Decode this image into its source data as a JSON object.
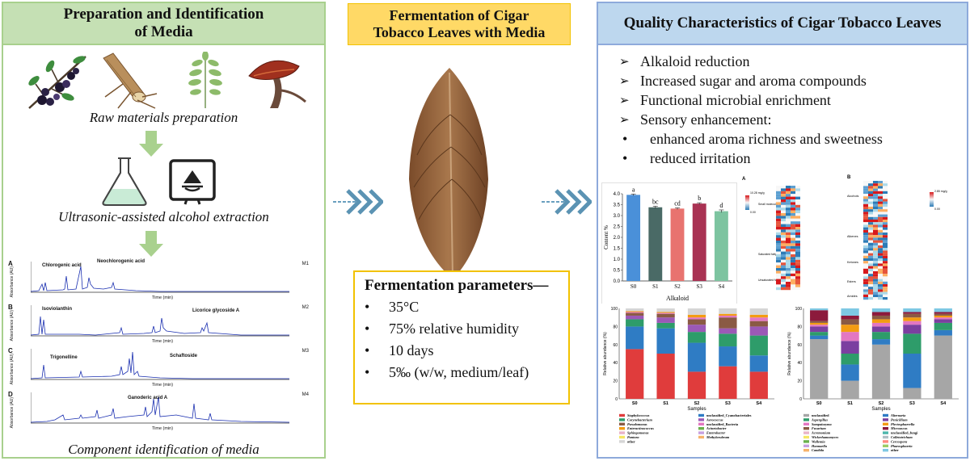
{
  "left_panel": {
    "title": "Preparation and Identification\nof Media",
    "captions": {
      "raw": "Raw materials preparation",
      "extraction": "Ultrasonic-assisted alcohol extraction",
      "identification": "Component identification of media"
    },
    "chromatograms": [
      {
        "panel": "A",
        "medium": "M1",
        "compounds": [
          "Chlorogenic acid",
          "Neochlorogenic acid"
        ]
      },
      {
        "panel": "B",
        "medium": "M2",
        "compounds": [
          "Isoviolanthin",
          "Licorice glycoside A"
        ]
      },
      {
        "panel": "C",
        "medium": "M3",
        "compounds": [
          "Trigonelline",
          "Schaftoside"
        ]
      },
      {
        "panel": "D",
        "medium": "M4",
        "compounds": [
          "Ganoderic acid A"
        ]
      }
    ],
    "chrom_axis": {
      "xlabel": "Time (min)",
      "ylabel": "Absorbance (AU)"
    }
  },
  "middle": {
    "title": "Fermentation of Cigar\nTobacco Leaves with Media",
    "params_title": "Fermentation parameters—",
    "params": [
      "35°C",
      "75% relative humidity",
      "10 days",
      "5‰ (w/w, medium/leaf)"
    ]
  },
  "right_panel": {
    "title": "Quality Characteristics of Cigar Tobacco Leaves",
    "items": [
      "Alkaloid reduction",
      "Increased sugar and aroma compounds",
      "Functional microbial enrichment",
      "Sensory enhancement:"
    ],
    "sub_items": [
      "enhanced aroma richness and sweetness",
      "reduced irritation"
    ],
    "bacteria_legend": [
      "Staphylococcus",
      "unclassified_Cyanobacteriales",
      "Corynebacterium",
      "Aerococcus",
      "Pseudomonas",
      "unclassified_Bacteria",
      "Enteractinococcus",
      "Acinetobacter",
      "Sphingomonas",
      "Enterobacter",
      "Pantoea",
      "Methylorubrum",
      "other"
    ],
    "fungi_legend": [
      "unclassified",
      "Alternaria",
      "Aspergillus",
      "Penicillium",
      "Sampaiozyma",
      "Plectosphaerella",
      "Fusarium",
      "Microascus",
      "Acremonium",
      "unclassified_fungi",
      "Wickerhamomyces",
      "Colletotrichum",
      "Wallemia",
      "Cercospora",
      "Hannaella",
      "Phaeosphaeria",
      "Candida",
      "other"
    ],
    "heatmap_left": {
      "panel": "A",
      "scale_label": "10.28 mg/g",
      "scale_min": "0.00",
      "groups": [
        "Small molecular acids",
        "Saturated fatty acid",
        "Unsaturated fatty acid"
      ]
    },
    "heatmap_right": {
      "panel": "B",
      "scale_label": "2.85 mg/g",
      "scale_min": "0.00",
      "groups": [
        "Alcohols",
        "Alkenes",
        "Ketones",
        "Esters",
        "Amides"
      ]
    }
  },
  "chart_data": [
    {
      "type": "bar",
      "title": "",
      "xlabel": "Alkaloid",
      "ylabel": "Content %",
      "categories": [
        "S0",
        "S1",
        "S2",
        "S3",
        "S4"
      ],
      "values": [
        3.95,
        3.38,
        3.32,
        3.55,
        3.2
      ],
      "errors": [
        0.04,
        0.05,
        0.04,
        0.04,
        0.06
      ],
      "labels": [
        "a",
        "bc",
        "cd",
        "b",
        "d"
      ],
      "colors": [
        "#4a90d9",
        "#4a6a66",
        "#e8736f",
        "#a93253",
        "#7dc4a0"
      ],
      "ylim": [
        0,
        4.0
      ],
      "yticks": [
        "0.0",
        "0.5",
        "1.0",
        "1.5",
        "2.0",
        "2.5",
        "3.0",
        "3.5",
        "4.0"
      ]
    },
    {
      "type": "bar",
      "stacked": true,
      "xlabel": "Samples",
      "ylabel": "Relative abundance (%)",
      "categories": [
        "S0",
        "S1",
        "S2",
        "S3",
        "S4"
      ],
      "yticks": [
        "0",
        "20",
        "40",
        "60",
        "80",
        "100"
      ],
      "series": [
        {
          "name": "Staphylococcus",
          "color": "#e03c3c",
          "values": [
            55,
            50,
            30,
            36,
            30
          ]
        },
        {
          "name": "unclassified_Cyanobacteriales",
          "color": "#2f7cc4",
          "values": [
            25,
            28,
            32,
            22,
            18
          ]
        },
        {
          "name": "Corynebacterium",
          "color": "#2e9c6a",
          "values": [
            8,
            6,
            12,
            14,
            22
          ]
        },
        {
          "name": "Aerococcus",
          "color": "#9b59b6",
          "values": [
            4,
            6,
            8,
            6,
            10
          ]
        },
        {
          "name": "Pseudomonas",
          "color": "#8a5a44",
          "values": [
            3,
            4,
            6,
            12,
            6
          ]
        },
        {
          "name": "unclassified_Bacteria",
          "color": "#e377c2",
          "values": [
            1,
            1,
            2,
            2,
            4
          ]
        },
        {
          "name": "Enteractinococcus",
          "color": "#f39c12",
          "values": [
            1,
            1,
            3,
            2,
            3
          ]
        },
        {
          "name": "other",
          "color": "#d5d5d5",
          "values": [
            3,
            4,
            7,
            6,
            7
          ]
        }
      ]
    },
    {
      "type": "bar",
      "stacked": true,
      "xlabel": "Samples",
      "ylabel": "Relative abundance (%)",
      "categories": [
        "S0",
        "S1",
        "S2",
        "S3",
        "S4"
      ],
      "yticks": [
        "0",
        "20",
        "40",
        "60",
        "80",
        "100"
      ],
      "series": [
        {
          "name": "unclassified",
          "color": "#a6a6a6",
          "values": [
            66,
            20,
            60,
            12,
            70
          ]
        },
        {
          "name": "Alternaria",
          "color": "#2f7cc4",
          "values": [
            4,
            18,
            6,
            38,
            6
          ]
        },
        {
          "name": "Aspergillus",
          "color": "#2e9c6a",
          "values": [
            4,
            12,
            8,
            22,
            8
          ]
        },
        {
          "name": "Penicillium",
          "color": "#7b3fa0",
          "values": [
            6,
            14,
            6,
            10,
            4
          ]
        },
        {
          "name": "Sampaiozyma",
          "color": "#e377c2",
          "values": [
            2,
            10,
            4,
            4,
            2
          ]
        },
        {
          "name": "Plectosphaerella",
          "color": "#f39c12",
          "values": [
            2,
            8,
            4,
            4,
            2
          ]
        },
        {
          "name": "Fusarium",
          "color": "#8a5a44",
          "values": [
            2,
            6,
            4,
            4,
            2
          ]
        },
        {
          "name": "Microascus",
          "color": "#8c1a3c",
          "values": [
            12,
            4,
            4,
            2,
            2
          ]
        },
        {
          "name": "other",
          "color": "#7ec8e3",
          "values": [
            2,
            8,
            4,
            4,
            4
          ]
        }
      ]
    }
  ]
}
